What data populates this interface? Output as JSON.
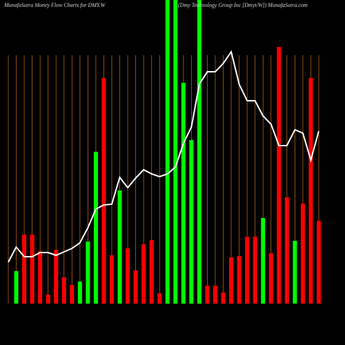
{
  "chart_data": {
    "type": "bar",
    "title": "MunafaSutra  Money Flow  Charts for DMY.W",
    "subtitle": "(Dmy Technology Group Inc [Dmyt/W]) MunafaSutra.com",
    "ylim": [
      0,
      440
    ],
    "background": "#000000",
    "gridline_color": "#b8650c",
    "bars": {
      "values": [
        null,
        47,
        100,
        100,
        76,
        13,
        78,
        38,
        27,
        32,
        90,
        220,
        327,
        70,
        164,
        80,
        48,
        86,
        92,
        15,
        440,
        440,
        320,
        237,
        440,
        26,
        26,
        16,
        67,
        69,
        97,
        97,
        124,
        73,
        372,
        154,
        91,
        145,
        327,
        120
      ],
      "colors": [
        null,
        "#00ff00",
        "#ff0000",
        "#ff0000",
        "#ff0000",
        "#ff0000",
        "#ff0000",
        "#ff0000",
        "#ff0000",
        "#00ff00",
        "#00ff00",
        "#00ff00",
        "#ff0000",
        "#ff0000",
        "#00ff00",
        "#ff0000",
        "#ff0000",
        "#ff0000",
        "#ff0000",
        "#ff0000",
        "#00ff00",
        "#00ff00",
        "#00ff00",
        "#00ff00",
        "#00ff00",
        "#ff0000",
        "#ff0000",
        "#ff0000",
        "#ff0000",
        "#ff0000",
        "#ff0000",
        "#ff0000",
        "#00ff00",
        "#ff0000",
        "#ff0000",
        "#ff0000",
        "#00ff00",
        "#ff0000",
        "#ff0000",
        "#ff0000"
      ]
    },
    "line": {
      "color": "#ffffff",
      "values": [
        60,
        82,
        68,
        68,
        74,
        74,
        70,
        75,
        80,
        88,
        110,
        137,
        143,
        144,
        183,
        168,
        182,
        194,
        188,
        184,
        188,
        198,
        232,
        256,
        318,
        336,
        336,
        348,
        365,
        318,
        294,
        294,
        272,
        260,
        229,
        229,
        252,
        247,
        208,
        250
      ]
    }
  }
}
